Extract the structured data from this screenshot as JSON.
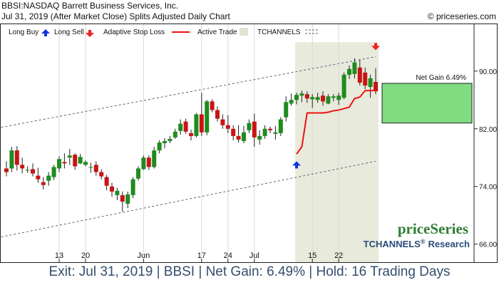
{
  "header": {
    "line1": "BBSI:NASDAQ Barrett Business Services, Inc.",
    "line2": "Jul 31, 2019 (After Market Close)  Splits Adjusted Daily Chart",
    "copyright": "© priceseries.com"
  },
  "legend": {
    "long_buy": "Long Buy",
    "long_sell": "Long Sell",
    "adaptive_stop": "Adaptive Stop Loss",
    "active_trade": "Active Trade",
    "tchannels": "TCHANNELS"
  },
  "branding": {
    "priceseries": "priceSeries",
    "tchannels": "TCHANNELS",
    "reg": "®",
    "research": "Research"
  },
  "footer": "Exit: Jul 31, 2019 | BBSI | Net Gain: 6.49% | Hold: 16 Trading Days",
  "colors": {
    "up": "#1e8c1e",
    "down": "#c81414",
    "stop": "#ee1111",
    "trade_zone": "#e8ebdc",
    "gain_box": "#7fdc7f",
    "buy_arrow": "#1133dd",
    "sell_arrow": "#ee2222",
    "channel": "#55667a"
  },
  "chart_data": {
    "type": "candlestick",
    "ylim": [
      63.5,
      96.5
    ],
    "yticks": [
      66,
      74,
      82,
      90
    ],
    "ytick_labels": [
      "66.00",
      "74.00",
      "82.00",
      "90.00"
    ],
    "xticks": [
      {
        "index": 10,
        "label": "13"
      },
      {
        "index": 15,
        "label": "20"
      },
      {
        "index": 26,
        "label": "Jun"
      },
      {
        "index": 37,
        "label": "17"
      },
      {
        "index": 42,
        "label": "24"
      },
      {
        "index": 47,
        "label": "Jul"
      },
      {
        "index": 58,
        "label": "15"
      },
      {
        "index": 63,
        "label": "22"
      }
    ],
    "candles": [
      {
        "o": 76.5,
        "h": 77.5,
        "l": 75.4,
        "c": 76.0
      },
      {
        "o": 76.5,
        "h": 79.5,
        "l": 76.0,
        "c": 79.0
      },
      {
        "o": 79.0,
        "h": 79.6,
        "l": 76.2,
        "c": 77.0
      },
      {
        "o": 77.0,
        "h": 78.0,
        "l": 75.8,
        "c": 76.5
      },
      {
        "o": 76.3,
        "h": 76.8,
        "l": 75.9,
        "c": 76.3
      },
      {
        "o": 76.4,
        "h": 77.2,
        "l": 75.4,
        "c": 75.8
      },
      {
        "o": 75.5,
        "h": 76.6,
        "l": 74.5,
        "c": 75.0
      },
      {
        "o": 74.6,
        "h": 75.3,
        "l": 73.6,
        "c": 74.2
      },
      {
        "o": 74.8,
        "h": 76.0,
        "l": 74.1,
        "c": 75.5
      },
      {
        "o": 75.3,
        "h": 77.0,
        "l": 74.9,
        "c": 76.7
      },
      {
        "o": 76.5,
        "h": 78.2,
        "l": 76.0,
        "c": 77.8
      },
      {
        "o": 77.4,
        "h": 78.6,
        "l": 76.5,
        "c": 77.2
      },
      {
        "o": 78.0,
        "h": 79.2,
        "l": 77.0,
        "c": 78.3
      },
      {
        "o": 78.4,
        "h": 78.6,
        "l": 76.3,
        "c": 76.8
      },
      {
        "o": 77.2,
        "h": 78.5,
        "l": 77.1,
        "c": 78.1
      },
      {
        "o": 77.0,
        "h": 77.6,
        "l": 76.8,
        "c": 77.4
      },
      {
        "o": 76.6,
        "h": 77.3,
        "l": 75.9,
        "c": 76.7
      },
      {
        "o": 77.0,
        "h": 77.5,
        "l": 75.5,
        "c": 76.0
      },
      {
        "o": 76.0,
        "h": 76.4,
        "l": 75.0,
        "c": 75.4
      },
      {
        "o": 75.3,
        "h": 75.6,
        "l": 73.5,
        "c": 74.1
      },
      {
        "o": 74.0,
        "h": 74.5,
        "l": 72.6,
        "c": 73.3
      },
      {
        "o": 72.8,
        "h": 73.8,
        "l": 72.1,
        "c": 73.4
      },
      {
        "o": 72.8,
        "h": 73.3,
        "l": 70.5,
        "c": 71.9
      },
      {
        "o": 71.6,
        "h": 73.3,
        "l": 71.0,
        "c": 72.9
      },
      {
        "o": 72.8,
        "h": 75.3,
        "l": 72.4,
        "c": 75.0
      },
      {
        "o": 75.1,
        "h": 76.8,
        "l": 74.8,
        "c": 76.5
      },
      {
        "o": 76.4,
        "h": 78.3,
        "l": 76.3,
        "c": 78.0
      },
      {
        "o": 78.0,
        "h": 78.3,
        "l": 76.3,
        "c": 76.7
      },
      {
        "o": 76.7,
        "h": 79.5,
        "l": 76.5,
        "c": 79.0
      },
      {
        "o": 79.0,
        "h": 80.4,
        "l": 78.6,
        "c": 80.1
      },
      {
        "o": 80.0,
        "h": 80.7,
        "l": 79.3,
        "c": 80.3
      },
      {
        "o": 80.3,
        "h": 81.0,
        "l": 80.0,
        "c": 80.6
      },
      {
        "o": 80.8,
        "h": 82.0,
        "l": 80.6,
        "c": 81.6
      },
      {
        "o": 81.7,
        "h": 83.3,
        "l": 81.2,
        "c": 82.7
      },
      {
        "o": 83.0,
        "h": 83.4,
        "l": 81.3,
        "c": 81.6
      },
      {
        "o": 81.4,
        "h": 81.9,
        "l": 80.4,
        "c": 81.0
      },
      {
        "o": 81.0,
        "h": 84.2,
        "l": 80.8,
        "c": 84.0
      },
      {
        "o": 84.0,
        "h": 87.0,
        "l": 81.0,
        "c": 81.5
      },
      {
        "o": 81.5,
        "h": 86.0,
        "l": 81.1,
        "c": 85.8
      },
      {
        "o": 85.8,
        "h": 86.1,
        "l": 84.3,
        "c": 84.6
      },
      {
        "o": 84.6,
        "h": 85.1,
        "l": 83.0,
        "c": 83.4
      },
      {
        "o": 83.3,
        "h": 84.0,
        "l": 82.0,
        "c": 82.5
      },
      {
        "o": 82.5,
        "h": 83.9,
        "l": 81.4,
        "c": 82.0
      },
      {
        "o": 82.0,
        "h": 82.5,
        "l": 80.4,
        "c": 81.0
      },
      {
        "o": 81.0,
        "h": 82.5,
        "l": 80.1,
        "c": 80.5
      },
      {
        "o": 80.3,
        "h": 82.4,
        "l": 80.0,
        "c": 81.5
      },
      {
        "o": 81.8,
        "h": 83.3,
        "l": 81.4,
        "c": 82.8
      },
      {
        "o": 83.0,
        "h": 84.1,
        "l": 79.5,
        "c": 80.8
      },
      {
        "o": 80.5,
        "h": 81.8,
        "l": 79.8,
        "c": 81.0
      },
      {
        "o": 81.0,
        "h": 82.5,
        "l": 80.6,
        "c": 82.0
      },
      {
        "o": 82.0,
        "h": 82.3,
        "l": 81.4,
        "c": 81.8
      },
      {
        "o": 81.3,
        "h": 82.4,
        "l": 80.5,
        "c": 81.5
      },
      {
        "o": 81.4,
        "h": 83.6,
        "l": 81.0,
        "c": 83.3
      },
      {
        "o": 83.6,
        "h": 86.5,
        "l": 83.0,
        "c": 85.7
      },
      {
        "o": 85.5,
        "h": 86.9,
        "l": 85.2,
        "c": 86.0
      },
      {
        "o": 86.0,
        "h": 87.0,
        "l": 85.4,
        "c": 86.7
      },
      {
        "o": 86.6,
        "h": 87.3,
        "l": 85.7,
        "c": 86.9
      },
      {
        "o": 86.8,
        "h": 87.2,
        "l": 85.6,
        "c": 86.2
      },
      {
        "o": 86.1,
        "h": 86.8,
        "l": 84.9,
        "c": 86.4
      },
      {
        "o": 86.0,
        "h": 87.0,
        "l": 85.6,
        "c": 86.4
      },
      {
        "o": 86.6,
        "h": 87.2,
        "l": 85.2,
        "c": 85.8
      },
      {
        "o": 85.5,
        "h": 86.8,
        "l": 85.4,
        "c": 86.5
      },
      {
        "o": 86.3,
        "h": 86.8,
        "l": 85.8,
        "c": 86.5
      },
      {
        "o": 86.0,
        "h": 87.0,
        "l": 85.3,
        "c": 86.6
      },
      {
        "o": 86.3,
        "h": 89.8,
        "l": 86.1,
        "c": 89.5
      },
      {
        "o": 89.5,
        "h": 90.8,
        "l": 88.9,
        "c": 90.3
      },
      {
        "o": 89.6,
        "h": 91.8,
        "l": 89.0,
        "c": 91.2
      },
      {
        "o": 90.5,
        "h": 91.6,
        "l": 88.0,
        "c": 88.4
      },
      {
        "o": 89.8,
        "h": 90.5,
        "l": 87.5,
        "c": 88.0
      },
      {
        "o": 87.8,
        "h": 89.5,
        "l": 86.3,
        "c": 89.0
      },
      {
        "o": 88.5,
        "h": 90.4,
        "l": 86.8,
        "c": 87.2
      }
    ],
    "channel_upper": [
      {
        "index": -1,
        "y": 82.2
      },
      {
        "index": 70,
        "y": 92.0
      }
    ],
    "channel_lower": [
      {
        "index": -1,
        "y": 67.0
      },
      {
        "index": 70,
        "y": 77.5
      }
    ],
    "stop_loss": [
      {
        "index": 55,
        "y": 78.5
      },
      {
        "index": 56,
        "y": 79.5
      },
      {
        "index": 57,
        "y": 84.2
      },
      {
        "index": 60,
        "y": 84.2
      },
      {
        "index": 61,
        "y": 84.3
      },
      {
        "index": 62,
        "y": 84.5
      },
      {
        "index": 63,
        "y": 84.6
      },
      {
        "index": 64,
        "y": 84.8
      },
      {
        "index": 65,
        "y": 85.0
      },
      {
        "index": 66,
        "y": 86.2
      },
      {
        "index": 67,
        "y": 86.4
      },
      {
        "index": 68,
        "y": 87.3
      },
      {
        "index": 69,
        "y": 87.3
      },
      {
        "index": 70,
        "y": 87.3
      }
    ],
    "active_trade": {
      "start_index": 55,
      "end_index": 70,
      "top": 94.0
    },
    "buy_signal": {
      "index": 55,
      "y": 76.9
    },
    "sell_signal": {
      "index": 70,
      "y": 93.5
    },
    "net_gain": {
      "label": "Net Gain 6.49%",
      "top": 88.3,
      "bottom": 82.8
    }
  }
}
